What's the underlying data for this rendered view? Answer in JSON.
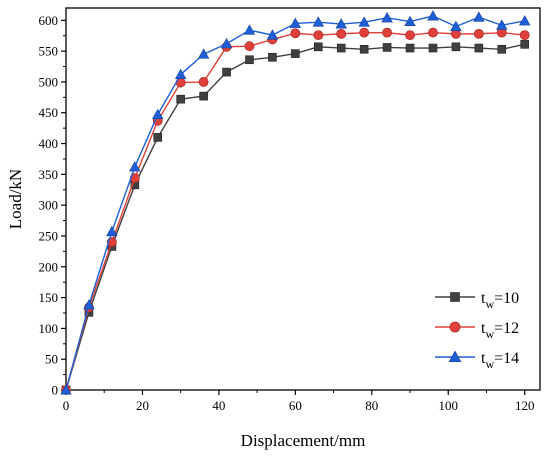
{
  "chart_data": {
    "type": "line",
    "title": "",
    "xlabel": "Displacement/mm",
    "ylabel": "Load/kN",
    "xlim": [
      0,
      124
    ],
    "ylim": [
      0,
      620
    ],
    "xticks": [
      0,
      20,
      40,
      60,
      80,
      100,
      120
    ],
    "yticks": [
      0,
      50,
      100,
      150,
      200,
      250,
      300,
      350,
      400,
      450,
      500,
      550,
      600
    ],
    "grid": false,
    "legend_position": "bottom-right",
    "x": [
      0,
      6,
      12,
      18,
      24,
      30,
      36,
      42,
      48,
      54,
      60,
      66,
      72,
      78,
      84,
      90,
      96,
      102,
      108,
      114,
      120
    ],
    "series": [
      {
        "name_base": "t",
        "name_subscript": "w",
        "name_suffix": "=10",
        "color": "#404040",
        "marker": "square",
        "values": [
          0,
          126,
          233,
          333,
          410,
          472,
          477,
          516,
          536,
          540,
          546,
          557,
          555,
          553,
          556,
          555,
          555,
          557,
          555,
          553,
          561
        ]
      },
      {
        "name_base": "t",
        "name_subscript": "w",
        "name_suffix": "=12",
        "color": "#e0403a",
        "marker": "circle",
        "values": [
          0,
          134,
          240,
          344,
          437,
          499,
          500,
          557,
          558,
          569,
          579,
          576,
          578,
          580,
          580,
          576,
          580,
          578,
          578,
          580,
          576
        ]
      },
      {
        "name_base": "t",
        "name_subscript": "w",
        "name_suffix": "=14",
        "color": "#1f5fd6",
        "marker": "triangle",
        "values": [
          0,
          138,
          257,
          362,
          447,
          512,
          545,
          562,
          584,
          576,
          595,
          597,
          594,
          597,
          604,
          598,
          607,
          590,
          605,
          592,
          599
        ]
      }
    ]
  }
}
